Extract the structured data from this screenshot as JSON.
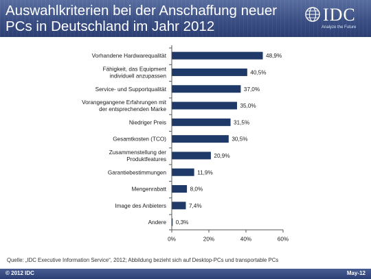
{
  "header": {
    "title_line1": "Auswahlkriterien bei der Anschaffung neuer",
    "title_line2": "PCs in Deutschland im Jahr 2012"
  },
  "logo": {
    "name": "IDC",
    "tagline": "Analyze the Future"
  },
  "chart_data": {
    "type": "bar",
    "orientation": "horizontal",
    "categories": [
      [
        "Vorhandene Hardwarequalität"
      ],
      [
        "Fähigkeit, das Equipment",
        "individuell anzupassen"
      ],
      [
        "Service- und Supportqualität"
      ],
      [
        "Vorangegangene Erfahrungen mit",
        "der entsprechenden Marke"
      ],
      [
        "Niedriger Preis"
      ],
      [
        "Gesamtkosten (TCO)"
      ],
      [
        "Zusammenstellung der",
        "Produktfeatures"
      ],
      [
        "Garantiebestimmungen"
      ],
      [
        "Mengenrabatt"
      ],
      [
        "Image des Anbieters"
      ],
      [
        "Andere"
      ]
    ],
    "values": [
      48.9,
      40.5,
      37.0,
      35.0,
      31.5,
      30.5,
      20.9,
      11.9,
      8.0,
      7.4,
      0.3
    ],
    "value_labels": [
      "48,9%",
      "40,5%",
      "37,0%",
      "35,0%",
      "31,5%",
      "30,5%",
      "20,9%",
      "11,9%",
      "8,0%",
      "7,4%",
      "0,3%"
    ],
    "x_ticks": [
      0,
      20,
      40,
      60
    ],
    "x_tick_labels": [
      "0%",
      "20%",
      "40%",
      "60%"
    ],
    "xlim": [
      0,
      60
    ],
    "bar_color": "#1f3a68",
    "grid": false
  },
  "source": "Quelle: „IDC Executive Information Service“, 2012; Abbildung bezieht sich auf Desktop-PCs und transportable PCs",
  "footer": {
    "copyright": "© 2012 IDC",
    "date": "May-12"
  },
  "colors": {
    "header_bg": "#3b4f85",
    "footer_bg": "#2c3f74",
    "bar": "#1f3a68"
  }
}
